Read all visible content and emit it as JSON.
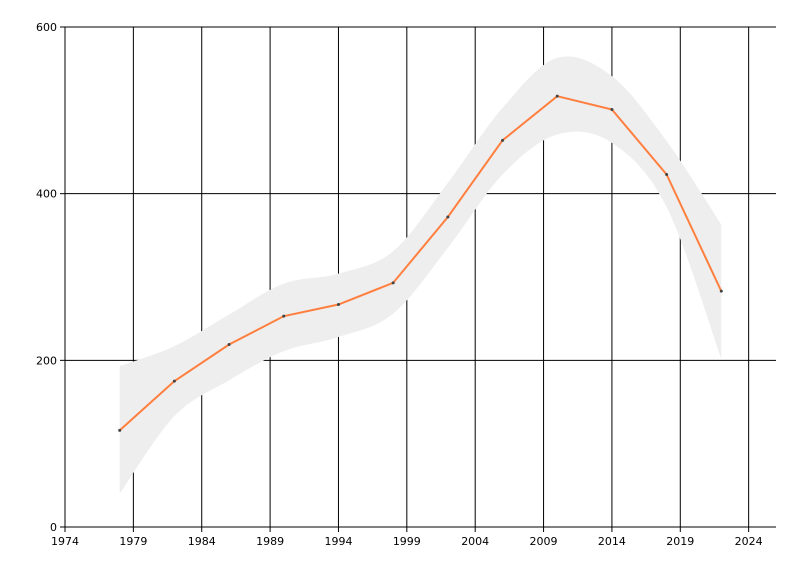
{
  "chart_data": {
    "type": "line",
    "x": [
      1978,
      1982,
      1986,
      1990,
      1994,
      1998,
      2002,
      2006,
      2010,
      2014,
      2018,
      2022
    ],
    "series": [
      {
        "values": [
          116,
          175,
          219,
          253,
          267,
          293,
          372,
          464,
          517,
          501,
          423,
          283
        ],
        "color": "#ff7f3f"
      }
    ],
    "band": {
      "upper": [
        193,
        217,
        255,
        292,
        304,
        331,
        413,
        503,
        563,
        541,
        463,
        363
      ],
      "lower": [
        40,
        133,
        176,
        211,
        228,
        256,
        335,
        423,
        471,
        461,
        384,
        202
      ],
      "color": "#eeeeee"
    },
    "xlim": [
      1974,
      2026
    ],
    "ylim": [
      0,
      600
    ],
    "x_ticks": [
      1974,
      1979,
      1984,
      1989,
      1994,
      1999,
      2004,
      2009,
      2014,
      2019,
      2024
    ],
    "y_ticks": [
      0,
      200,
      400,
      600
    ],
    "x_tick_labels": [
      "1974",
      "1979",
      "1984",
      "1989",
      "1994",
      "1999",
      "2004",
      "2009",
      "2014",
      "2019",
      "2024"
    ],
    "y_tick_labels": [
      "0",
      "200",
      "400",
      "600"
    ],
    "grid": true,
    "title": "",
    "xlabel": "",
    "ylabel": ""
  }
}
